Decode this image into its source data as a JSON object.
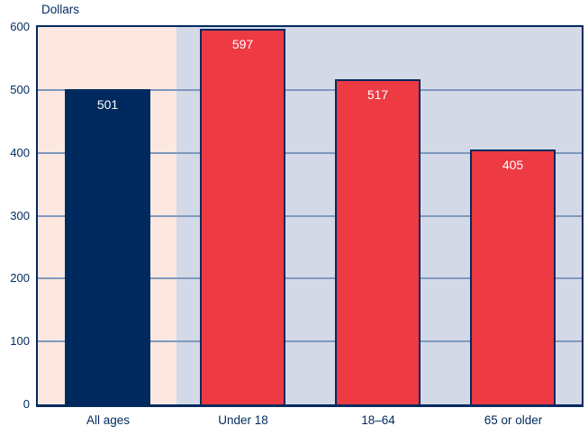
{
  "chart_data": {
    "type": "bar",
    "title": "",
    "ylabel": "Dollars",
    "xlabel": "",
    "categories": [
      "All ages",
      "Under 18",
      "18–64",
      "65 or older"
    ],
    "values": [
      501,
      597,
      517,
      405
    ],
    "ylim": [
      0,
      600
    ],
    "yticks": [
      0,
      100,
      200,
      300,
      400,
      500,
      600
    ],
    "grid": "horizontal",
    "legend": "none",
    "bar_colors": [
      "#002a5e",
      "#ee3a43",
      "#ee3a43",
      "#ee3a43"
    ],
    "value_label_color": "#ffffff",
    "highlight_band": {
      "category": "All ages",
      "color": "#fce8e1"
    },
    "plot_background": "#d3d9e7",
    "axis_color": "#002a5e",
    "gridline_color": "#8098bc"
  }
}
